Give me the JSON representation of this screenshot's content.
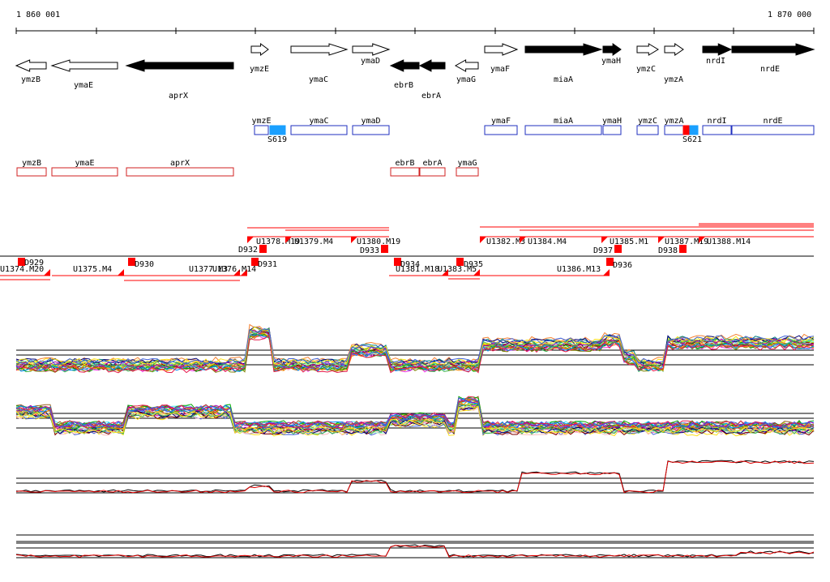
{
  "axis": {
    "start_label": "1 860 001",
    "end_label": "1 870 000"
  },
  "colors": {
    "gene_fill": "#000000",
    "gene_outline": "#000000",
    "box_blue": "#1f2fbf",
    "box_red": "#d02020",
    "highlight_blue": "#1aa0ff",
    "highlight_red": "#ff0000",
    "segment_red": "#ff0000"
  },
  "genes": [
    {
      "name": "ymzB",
      "dir": "left",
      "filled": false
    },
    {
      "name": "ymaE",
      "dir": "left",
      "filled": false
    },
    {
      "name": "aprX",
      "dir": "left",
      "filled": true
    },
    {
      "name": "ymzE",
      "dir": "right",
      "filled": false
    },
    {
      "name": "ymaC",
      "dir": "right",
      "filled": false
    },
    {
      "name": "ymaD",
      "dir": "right",
      "filled": false
    },
    {
      "name": "ebrB",
      "dir": "left",
      "filled": true
    },
    {
      "name": "ebrA",
      "dir": "left",
      "filled": true
    },
    {
      "name": "ymaG",
      "dir": "left",
      "filled": false
    },
    {
      "name": "ymaF",
      "dir": "right",
      "filled": false
    },
    {
      "name": "miaA",
      "dir": "right",
      "filled": true
    },
    {
      "name": "ymaH",
      "dir": "right",
      "filled": true
    },
    {
      "name": "ymzC",
      "dir": "right",
      "filled": false
    },
    {
      "name": "ymzA",
      "dir": "right",
      "filled": false
    },
    {
      "name": "nrdI",
      "dir": "right",
      "filled": true
    },
    {
      "name": "nrdE",
      "dir": "right",
      "filled": true
    }
  ],
  "blue_boxes": [
    "ymzE",
    "ymaC",
    "ymaD",
    "ymaF",
    "miaA",
    "ymaH",
    "ymzC",
    "ymzA",
    "nrdI",
    "nrdE"
  ],
  "blue_markers": [
    "S619",
    "S621"
  ],
  "red_boxes": [
    "ymzB",
    "ymaE",
    "aprX",
    "ebrB",
    "ebrA",
    "ymaG"
  ],
  "segments_upper": [
    "U1378.M19",
    "U1379.M4",
    "U1380.M19",
    "U1382.M3",
    "U1384.M4",
    "U1385.M1",
    "U1387.M19",
    "U1388.M14"
  ],
  "segments_lower": [
    "U1374.M20",
    "U1375.M4",
    "U1377.M3",
    "U1376.M14",
    "U1381.M18",
    "U1383.M5",
    "U1386.M13"
  ],
  "d_markers": [
    "D929",
    "D930",
    "D931",
    "D932",
    "D933",
    "D934",
    "D935",
    "D936",
    "D937",
    "D938"
  ]
}
